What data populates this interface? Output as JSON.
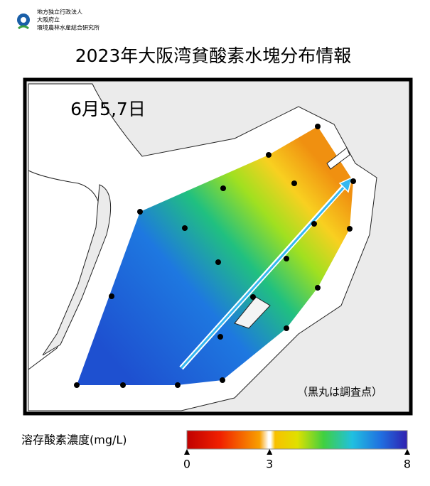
{
  "header": {
    "org_lines": [
      "地方独立行政法人",
      "大阪府立",
      "環境農林水産総合研究所"
    ],
    "title": "2023年大阪湾貧酸素水塊分布情報"
  },
  "map": {
    "date": "6月5,7日",
    "note": "（黒丸は調査点）"
  },
  "legend": {
    "label": "溶存酸素濃度(mg/L)",
    "ticks": [
      0,
      3,
      8
    ]
  }
}
